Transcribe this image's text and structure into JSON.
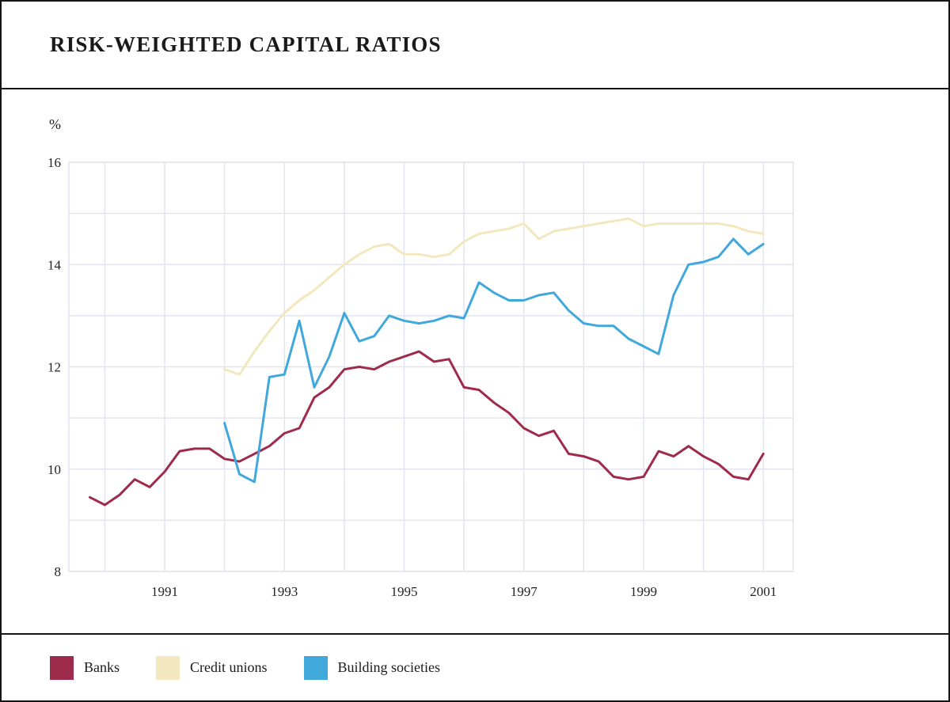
{
  "header": {
    "title": "RISK-WEIGHTED CAPITAL RATIOS"
  },
  "chart_data": {
    "type": "line",
    "unit_label": "%",
    "ylim": [
      8,
      16
    ],
    "yticks": [
      8,
      10,
      12,
      14,
      16
    ],
    "xlim": [
      1989.4,
      2001.5
    ],
    "xticks": [
      1991,
      1993,
      1995,
      1997,
      1999,
      2001
    ],
    "grid_color": "#e3e4ef",
    "axis_text_color": "#222222",
    "legend_position": "bottom",
    "grid": "on",
    "series": [
      {
        "name": "Banks",
        "color": "#9e2b4b",
        "start_year": 1989.75,
        "step": 0.25,
        "values": [
          9.45,
          9.3,
          9.5,
          9.8,
          9.65,
          9.95,
          10.35,
          10.4,
          10.4,
          10.2,
          10.15,
          10.3,
          10.45,
          10.7,
          10.8,
          11.4,
          11.6,
          11.95,
          12.0,
          11.95,
          12.1,
          12.2,
          12.3,
          12.1,
          12.15,
          11.6,
          11.55,
          11.3,
          11.1,
          10.8,
          10.65,
          10.75,
          10.3,
          10.25,
          10.15,
          9.85,
          9.8,
          9.85,
          10.35,
          10.25,
          10.45,
          10.25,
          10.1,
          9.85,
          9.8,
          10.3
        ]
      },
      {
        "name": "Credit unions",
        "color": "#f2e7bd",
        "start_year": 1992.0,
        "step": 0.25,
        "values": [
          11.95,
          11.85,
          12.3,
          12.7,
          13.05,
          13.3,
          13.5,
          13.75,
          14.0,
          14.2,
          14.35,
          14.4,
          14.2,
          14.2,
          14.15,
          14.2,
          14.45,
          14.6,
          14.65,
          14.7,
          14.8,
          14.5,
          14.65,
          14.7,
          14.75,
          14.8,
          14.85,
          14.9,
          14.75,
          14.8,
          14.8,
          14.8,
          14.8,
          14.8,
          14.75,
          14.65,
          14.6
        ]
      },
      {
        "name": "Building societies",
        "color": "#41a8dc",
        "start_year": 1992.0,
        "step": 0.25,
        "values": [
          10.9,
          9.9,
          9.75,
          11.8,
          11.85,
          12.9,
          11.6,
          12.2,
          13.05,
          12.5,
          12.6,
          13.0,
          12.9,
          12.85,
          12.9,
          13.0,
          12.95,
          13.65,
          13.45,
          13.3,
          13.3,
          13.4,
          13.45,
          13.1,
          12.85,
          12.8,
          12.8,
          12.55,
          12.4,
          12.25,
          13.4,
          14.0,
          14.05,
          14.15,
          14.5,
          14.2,
          14.4
        ]
      }
    ]
  }
}
